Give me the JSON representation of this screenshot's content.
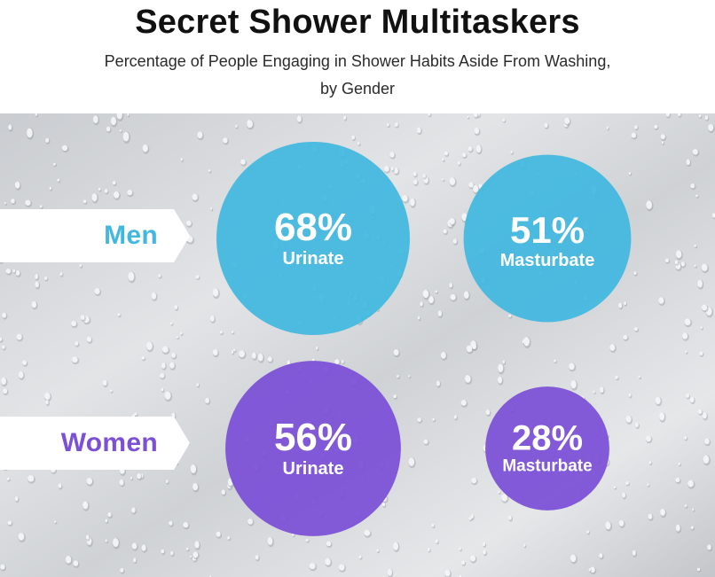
{
  "colors": {
    "men": "#42b8e0",
    "women": "#7b4fd6",
    "background": "#d8dadd"
  },
  "chart_data": {
    "type": "bubble",
    "title": "Secret Shower Multitaskers",
    "subtitle_line1": "Percentage of People Engaging in Shower Habits Aside From Washing,",
    "subtitle_line2": "by Gender",
    "categories": [
      "Urinate",
      "Masturbate"
    ],
    "series": [
      {
        "name": "Men",
        "values": [
          68,
          51
        ],
        "labels": [
          "68%",
          "51%"
        ]
      },
      {
        "name": "Women",
        "values": [
          56,
          28
        ],
        "labels": [
          "56%",
          "28%"
        ]
      }
    ]
  }
}
